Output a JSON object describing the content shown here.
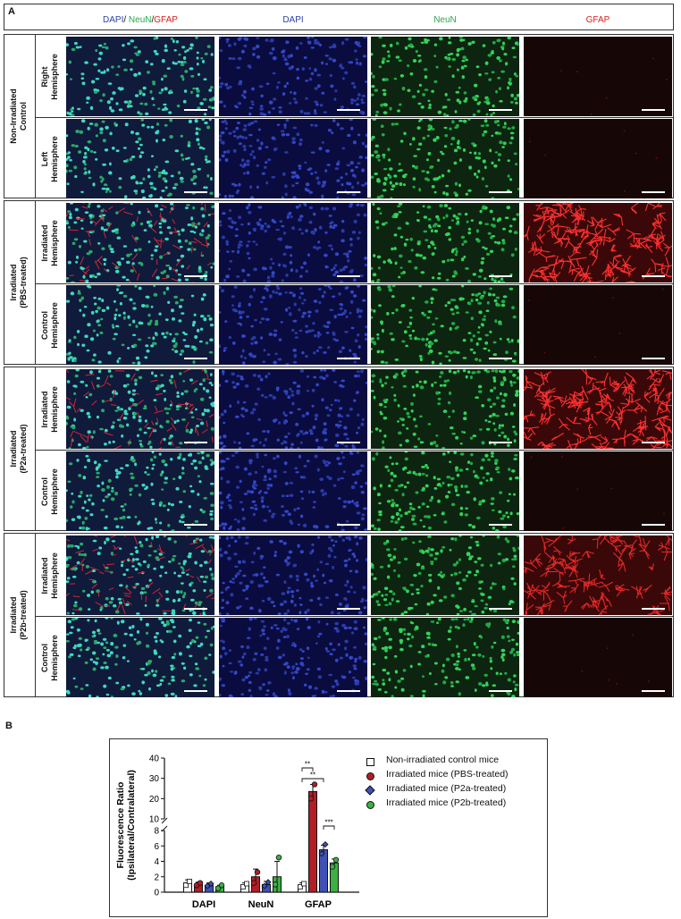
{
  "panel_a": {
    "letter": "A",
    "column_titles": [
      {
        "parts": [
          {
            "text": "DAPI",
            "color": "#2b3fa8"
          },
          {
            "text": "/ ",
            "color": "#111111"
          },
          {
            "text": "NeuN",
            "color": "#2aa84a"
          },
          {
            "text": "/",
            "color": "#111111"
          },
          {
            "text": "GFAP",
            "color": "#d62020"
          }
        ]
      },
      {
        "parts": [
          {
            "text": "DAPI",
            "color": "#2b3fa8"
          }
        ]
      },
      {
        "parts": [
          {
            "text": "NeuN",
            "color": "#2aa84a"
          }
        ]
      },
      {
        "parts": [
          {
            "text": "GFAP",
            "color": "#d62020"
          }
        ]
      }
    ],
    "groups": [
      {
        "label_lines": [
          "Non-Irradiated",
          "Control"
        ],
        "rows": [
          {
            "label_lines": [
              "Right",
              "Hemisphere"
            ],
            "gfap": "low"
          },
          {
            "label_lines": [
              "Left",
              "Hemisphere"
            ],
            "gfap": "low"
          }
        ]
      },
      {
        "label_lines": [
          "Irradiated",
          "(PBS-treated)"
        ],
        "rows": [
          {
            "label_lines": [
              "Irradiated",
              "Hemisphere"
            ],
            "gfap": "high"
          },
          {
            "label_lines": [
              "Control",
              "Hemisphere"
            ],
            "gfap": "low"
          }
        ]
      },
      {
        "label_lines": [
          "Irradiated",
          "(P2a-treated)"
        ],
        "rows": [
          {
            "label_lines": [
              "Irradiated",
              "Hemisphere"
            ],
            "gfap": "high"
          },
          {
            "label_lines": [
              "Control",
              "Hemisphere"
            ],
            "gfap": "low"
          }
        ]
      },
      {
        "label_lines": [
          "Irradiated",
          "(P2b-treated)"
        ],
        "rows": [
          {
            "label_lines": [
              "Irradiated",
              "Hemisphere"
            ],
            "gfap": "mid"
          },
          {
            "label_lines": [
              "Control",
              "Hemisphere"
            ],
            "gfap": "low"
          }
        ]
      }
    ],
    "tile_icons": [
      "merged-fluorescence-image",
      "dapi-fluorescence-image",
      "neun-fluorescence-image",
      "gfap-fluorescence-image"
    ]
  },
  "panel_b": {
    "letter": "B",
    "chart_data": {
      "type": "bar",
      "ylabel_lines": [
        "Fluorescence Ratio",
        "(Ipsilateral/Contralateral)"
      ],
      "categories": [
        "DAPI",
        "NeuN",
        "GFAP"
      ],
      "y_axis": {
        "broken": true,
        "lower_range": [
          0,
          8
        ],
        "upper_range": [
          10,
          40
        ],
        "lower_ticks": [
          0,
          2,
          4,
          6,
          8
        ],
        "upper_ticks": [
          10,
          20,
          30,
          40
        ]
      },
      "series": [
        {
          "name": "Non-irradiated control mice",
          "color": "#ffffff",
          "marker": "square",
          "values": [
            1.2,
            0.9,
            0.9
          ],
          "errors": [
            0.4,
            0.3,
            0.3
          ],
          "points": [
            [
              0.9,
              1.4
            ],
            [
              0.7,
              1.1
            ],
            [
              0.7,
              1.1
            ]
          ]
        },
        {
          "name": "Irradiated mice (PBS-treated)",
          "color": "#b21e25",
          "marker": "circle",
          "values": [
            1.0,
            2.0,
            23.5
          ],
          "errors": [
            0.3,
            1.0,
            3.5
          ],
          "points": [
            [
              0.9,
              1.2
            ],
            [
              1.2,
              2.6
            ],
            [
              20.0,
              27.0
            ]
          ]
        },
        {
          "name": "Irradiated mice (P2a-treated)",
          "color": "#3f51b5",
          "marker": "diamond",
          "values": [
            0.9,
            1.0,
            5.5
          ],
          "errors": [
            0.3,
            0.4,
            0.6
          ],
          "points": [
            [
              0.8,
              1.1
            ],
            [
              0.8,
              1.3
            ],
            [
              5.0,
              6.2
            ]
          ]
        },
        {
          "name": "Irradiated mice (P2b-treated)",
          "color": "#3cb043",
          "marker": "circle",
          "values": [
            0.7,
            2.0,
            3.8
          ],
          "errors": [
            0.2,
            2.0,
            0.5
          ],
          "points": [
            [
              0.5,
              0.9
            ],
            [
              1.0,
              4.5
            ],
            [
              3.3,
              4.2
            ]
          ]
        }
      ],
      "significance": [
        {
          "group": "GFAP",
          "from": 0,
          "to": 1,
          "label": "**"
        },
        {
          "group": "GFAP",
          "from": 0,
          "to": 2,
          "label": "**"
        },
        {
          "group": "GFAP",
          "from": 2,
          "to": 3,
          "label": "***"
        }
      ]
    }
  }
}
